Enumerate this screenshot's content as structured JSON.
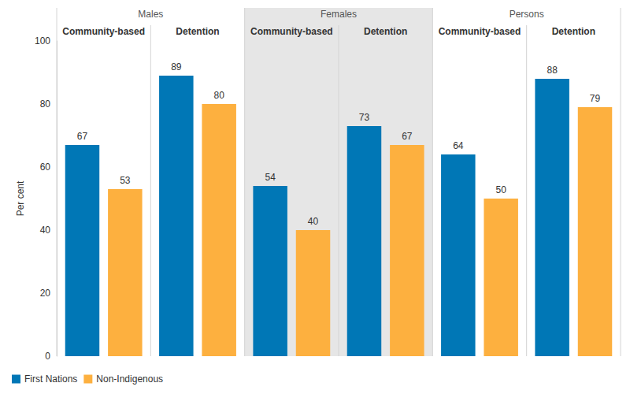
{
  "chart_data": {
    "type": "bar",
    "categories": [
      "Community-based",
      "Detention",
      "Community-based",
      "Detention",
      "Community-based",
      "Detention"
    ],
    "category_groups": [
      "Males",
      "Males",
      "Females",
      "Females",
      "Persons",
      "Persons"
    ],
    "series": [
      {
        "name": "First Nations",
        "color": "#0077b6",
        "values": [
          67,
          89,
          54,
          73,
          64,
          88
        ]
      },
      {
        "name": "Non-Indigenous",
        "color": "#fdb03f",
        "values": [
          53,
          80,
          40,
          67,
          50,
          79
        ]
      }
    ],
    "y_label": "Per cent",
    "ylim": [
      0,
      100
    ],
    "yticks": [
      0,
      20,
      40,
      60,
      80,
      100
    ],
    "grid": false,
    "data_labels": true,
    "legend": "bottom-left"
  }
}
